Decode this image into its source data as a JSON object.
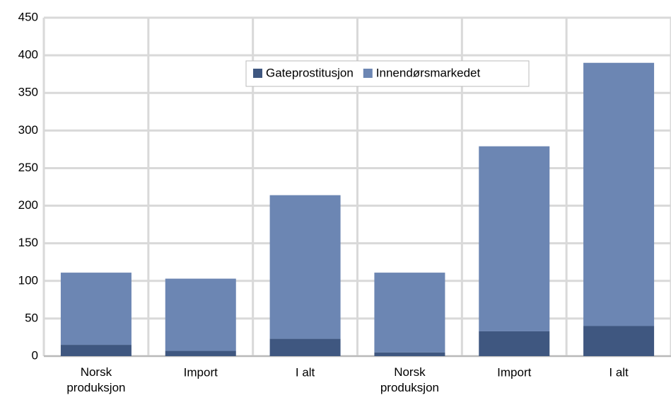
{
  "chart_data": {
    "type": "stacked_bar",
    "categories": [
      "Norsk produksjon",
      "Import",
      "I alt",
      "Norsk produksjon",
      "Import",
      "I alt"
    ],
    "series": [
      {
        "name": "Gateprostitusjon",
        "color": "#3f5780",
        "values": [
          15,
          7,
          23,
          5,
          33,
          40
        ]
      },
      {
        "name": "Innendørsmarkedet",
        "color": "#6c86b3",
        "values": [
          96,
          96,
          191,
          106,
          246,
          350
        ]
      }
    ],
    "ylim": [
      0,
      450
    ],
    "yticks": [
      0,
      50,
      100,
      150,
      200,
      250,
      300,
      350,
      400,
      450
    ],
    "grid": true,
    "legend": "top"
  }
}
